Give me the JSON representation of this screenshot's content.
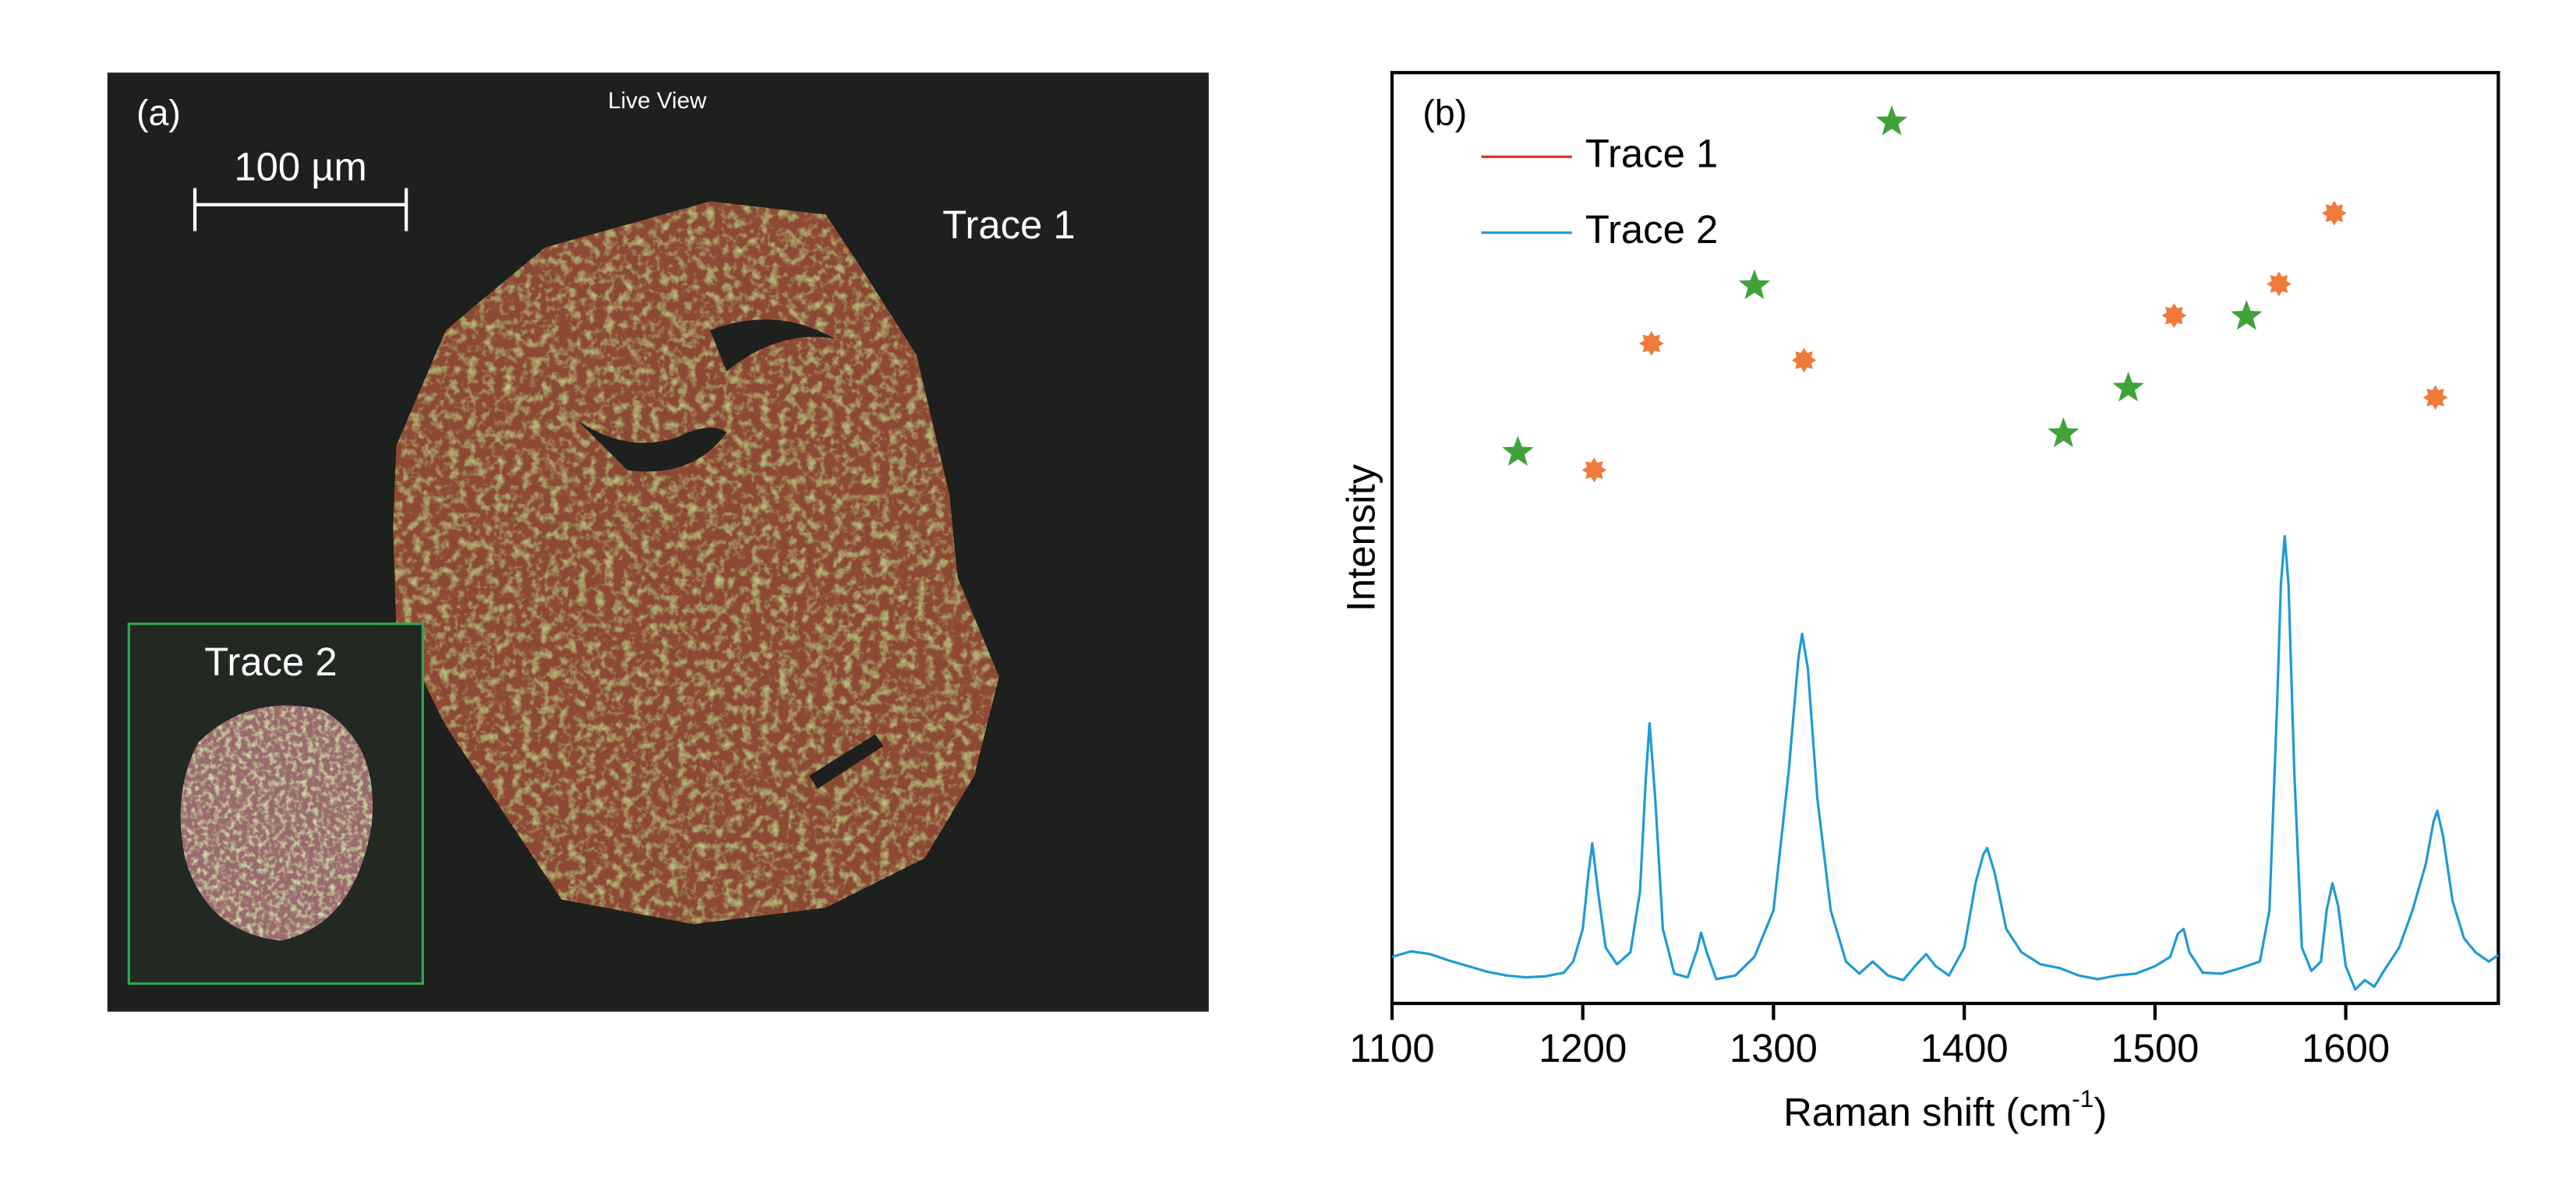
{
  "panel_a": {
    "label": "(a)",
    "header": "Live View",
    "scale_bar": "100 µm",
    "trace1_label": "Trace 1",
    "trace2_label": "Trace 2"
  },
  "chart_data": {
    "type": "line",
    "panel_label": "(b)",
    "x_label": "Raman shift (cm",
    "x_label_sup": "-1",
    "x_label_end": ")",
    "y_label": "Intensity",
    "xlim": [
      1100,
      1680
    ],
    "ylim": [
      0,
      100
    ],
    "xticks": [
      1100,
      1200,
      1300,
      1400,
      1500,
      1600
    ],
    "x": [
      1100,
      1110,
      1120,
      1130,
      1140,
      1150,
      1160,
      1170,
      1180,
      1190,
      1195,
      1200,
      1203,
      1205,
      1208,
      1212,
      1218,
      1225,
      1230,
      1233,
      1235,
      1238,
      1242,
      1248,
      1255,
      1260,
      1262,
      1265,
      1270,
      1280,
      1290,
      1300,
      1308,
      1313,
      1315,
      1318,
      1323,
      1330,
      1338,
      1345,
      1352,
      1360,
      1368,
      1375,
      1380,
      1385,
      1392,
      1400,
      1406,
      1410,
      1412,
      1416,
      1422,
      1430,
      1440,
      1450,
      1460,
      1470,
      1480,
      1490,
      1500,
      1508,
      1512,
      1515,
      1518,
      1525,
      1535,
      1545,
      1555,
      1560,
      1564,
      1566,
      1568,
      1570,
      1573,
      1577,
      1582,
      1587,
      1590,
      1593,
      1596,
      1600,
      1605,
      1610,
      1615,
      1620,
      1628,
      1635,
      1642,
      1646,
      1648,
      1651,
      1656,
      1662,
      1668,
      1675,
      1680
    ],
    "series": [
      {
        "name": "Trace 2",
        "color": "#1e9ad6",
        "values": [
          5.0,
          5.6,
          5.3,
          4.6,
          4.0,
          3.4,
          3.0,
          2.8,
          2.9,
          3.3,
          4.5,
          8,
          14,
          17.2,
          12,
          6,
          4.2,
          5.5,
          12,
          24,
          30.1,
          22,
          8,
          3.2,
          2.8,
          5.8,
          7.6,
          5.5,
          2.6,
          3.0,
          5,
          10,
          25,
          37,
          39.7,
          36,
          22,
          10,
          4.5,
          3.2,
          4.5,
          3.0,
          2.5,
          4.2,
          5.3,
          4.0,
          3.0,
          6,
          13,
          16,
          16.7,
          14,
          8,
          5.5,
          4.2,
          3.8,
          3.0,
          2.6,
          3.0,
          3.2,
          4.0,
          5,
          7.5,
          8,
          5.5,
          3.3,
          3.2,
          3.8,
          4.5,
          10,
          32,
          45,
          50.2,
          45,
          25,
          6,
          3.5,
          4.5,
          10,
          12.9,
          10.5,
          4,
          1.5,
          2.5,
          1.8,
          3.5,
          6,
          10,
          15,
          19.5,
          20.7,
          18,
          11,
          7,
          5.5,
          4.5,
          5.2
        ]
      }
    ],
    "legend_only_series": [
      {
        "name": "Trace 1",
        "color": "#e0322b"
      }
    ],
    "markers": [
      {
        "shape": "star",
        "color": "#3fa33a",
        "x": [
          1166,
          1290,
          1362,
          1452,
          1486,
          1548
        ],
        "y": [
          59.2,
          77.1,
          94.7,
          61.2,
          66.1,
          73.8
        ]
      },
      {
        "shape": "burst",
        "color": "#ef7a3b",
        "x": [
          1206,
          1236,
          1316,
          1510,
          1565,
          1594,
          1647
        ],
        "y": [
          57.3,
          70.9,
          69.1,
          73.9,
          77.3,
          84.9,
          65.1
        ]
      }
    ]
  }
}
